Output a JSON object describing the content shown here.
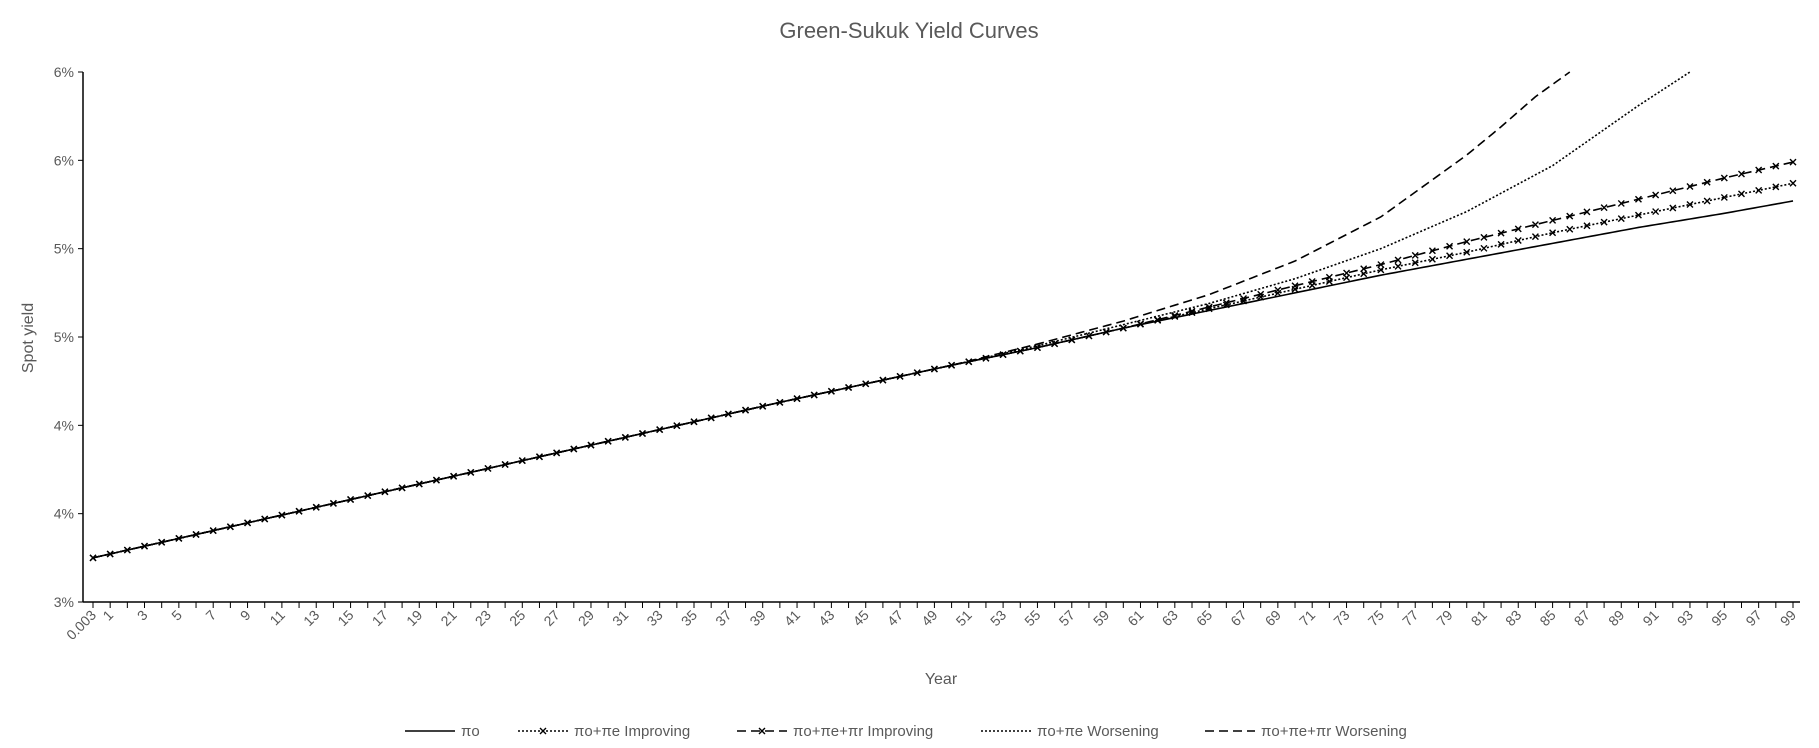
{
  "chart_data": {
    "type": "line",
    "title": "Green-Sukuk Yield Curves",
    "xlabel": "Year",
    "ylabel": "Spot yield",
    "y_tick_labels": [
      "3%",
      "4%",
      "4%",
      "5%",
      "5%",
      "6%",
      "6%"
    ],
    "ylim": [
      0.03,
      0.06
    ],
    "grid": false,
    "legend_position": "bottom",
    "x_tick_labels": [
      "0.003",
      "1",
      "3",
      "5",
      "7",
      "9",
      "11",
      "13",
      "15",
      "17",
      "19",
      "21",
      "23",
      "25",
      "27",
      "29",
      "31",
      "33",
      "35",
      "37",
      "39",
      "41",
      "43",
      "45",
      "47",
      "49",
      "51",
      "53",
      "55",
      "57",
      "59",
      "61",
      "63",
      "65",
      "67",
      "69",
      "71",
      "73",
      "75",
      "77",
      "79",
      "81",
      "83",
      "85",
      "87",
      "89",
      "91",
      "93",
      "95",
      "97",
      "99"
    ],
    "x_range": [
      0,
      99
    ],
    "series": [
      {
        "name": "πo",
        "style": "solid",
        "marker": "none",
        "x": [
          0,
          10,
          20,
          30,
          40,
          50,
          55,
          60,
          65,
          70,
          75,
          80,
          85,
          90,
          95,
          99
        ],
        "y": [
          0.0325,
          0.0347,
          0.0369,
          0.0391,
          0.0413,
          0.0434,
          0.0444,
          0.0455,
          0.0465,
          0.0475,
          0.0485,
          0.0494,
          0.0503,
          0.0512,
          0.052,
          0.0527
        ]
      },
      {
        "name": "πo+πe Improving",
        "style": "dotted",
        "marker": "x",
        "x": [
          0,
          10,
          20,
          30,
          40,
          50,
          55,
          60,
          65,
          70,
          75,
          80,
          85,
          90,
          95,
          99
        ],
        "y": [
          0.0325,
          0.0347,
          0.0369,
          0.0391,
          0.0413,
          0.0434,
          0.0444,
          0.0455,
          0.0466,
          0.0477,
          0.0488,
          0.0498,
          0.0509,
          0.0519,
          0.0529,
          0.0537
        ]
      },
      {
        "name": "πo+πe+πr Improving",
        "style": "dashed",
        "marker": "x",
        "x": [
          0,
          10,
          20,
          30,
          40,
          50,
          55,
          60,
          65,
          70,
          75,
          80,
          85,
          90,
          95,
          99
        ],
        "y": [
          0.0325,
          0.0347,
          0.0369,
          0.0391,
          0.0413,
          0.0434,
          0.0444,
          0.0455,
          0.0467,
          0.0479,
          0.0491,
          0.0504,
          0.0516,
          0.0528,
          0.054,
          0.0549
        ]
      },
      {
        "name": "πo+πe Worsening",
        "style": "dotted",
        "marker": "none",
        "x": [
          0,
          10,
          20,
          30,
          40,
          50,
          55,
          60,
          65,
          70,
          75,
          80,
          85,
          90,
          93
        ],
        "y": [
          0.0325,
          0.0347,
          0.0369,
          0.0391,
          0.0413,
          0.0434,
          0.0445,
          0.0457,
          0.0469,
          0.0483,
          0.05,
          0.0521,
          0.0547,
          0.0581,
          0.06
        ]
      },
      {
        "name": "πo+πe+πr Worsening",
        "style": "dashed",
        "marker": "none",
        "x": [
          0,
          10,
          20,
          30,
          40,
          50,
          55,
          60,
          65,
          70,
          75,
          80,
          82,
          84,
          86
        ],
        "y": [
          0.0325,
          0.0347,
          0.0369,
          0.0391,
          0.0413,
          0.0434,
          0.0446,
          0.0459,
          0.0474,
          0.0493,
          0.0518,
          0.0553,
          0.0569,
          0.0586,
          0.06
        ]
      }
    ]
  }
}
